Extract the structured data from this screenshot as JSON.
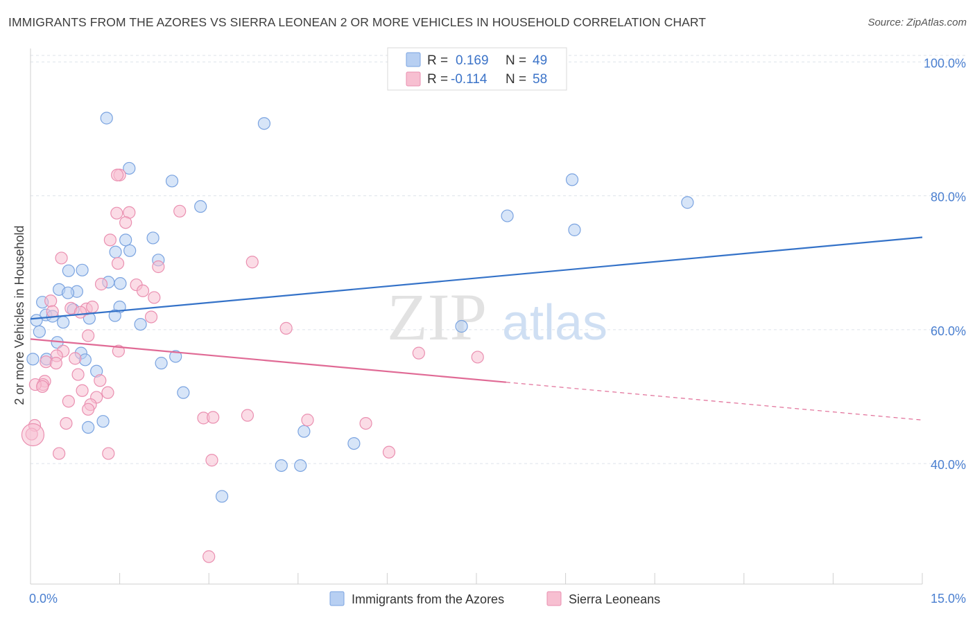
{
  "header": {
    "title": "IMMIGRANTS FROM THE AZORES VS SIERRA LEONEAN 2 OR MORE VEHICLES IN HOUSEHOLD CORRELATION CHART",
    "source": "Source: ZipAtlas.com"
  },
  "watermark": {
    "zip": "ZIP",
    "atlas": "atlas"
  },
  "legend": {
    "r_label": "R =",
    "n_label": "N =",
    "rows": [
      {
        "r": "0.169",
        "n": "49"
      },
      {
        "r": "-0.114",
        "n": "58"
      }
    ]
  },
  "colors": {
    "blue_fill": "#b7cff2",
    "blue_stroke": "#7aa3e0",
    "blue_line": "#3472c8",
    "pink_fill": "#f7bfd1",
    "pink_stroke": "#ea8fb0",
    "pink_line": "#e06a95",
    "axis_label": "#4a7fd0",
    "grid": "#dde3ea"
  },
  "chart_data": {
    "type": "scatter",
    "title": "IMMIGRANTS FROM THE AZORES VS SIERRA LEONEAN 2 OR MORE VEHICLES IN HOUSEHOLD CORRELATION CHART",
    "xlabel": "",
    "ylabel": "2 or more Vehicles in Household",
    "xlim": [
      0,
      15
    ],
    "ylim": [
      22,
      102
    ],
    "x_tick_labels": [
      "0.0%",
      "15.0%"
    ],
    "y_ticks": [
      40,
      60,
      80,
      100
    ],
    "y_tick_labels": [
      "40.0%",
      "60.0%",
      "80.0%",
      "100.0%"
    ],
    "grid": "horizontal-dashed",
    "legend_position": "bottom",
    "series": [
      {
        "name": "Immigrants from the Azores",
        "color": "#b7cff2",
        "trend": {
          "x": [
            0.0,
            15.0
          ],
          "y": [
            61.6,
            73.8
          ],
          "dashed_from": null
        },
        "points": [
          [
            1.28,
            91.6
          ],
          [
            3.93,
            90.8
          ],
          [
            1.66,
            84.1
          ],
          [
            2.38,
            82.2
          ],
          [
            9.11,
            82.4
          ],
          [
            2.86,
            78.4
          ],
          [
            11.05,
            79.0
          ],
          [
            8.02,
            77.0
          ],
          [
            9.15,
            74.9
          ],
          [
            2.06,
            73.7
          ],
          [
            1.6,
            73.4
          ],
          [
            1.43,
            71.6
          ],
          [
            1.67,
            71.8
          ],
          [
            2.15,
            70.4
          ],
          [
            0.64,
            68.8
          ],
          [
            0.87,
            68.9
          ],
          [
            1.31,
            67.1
          ],
          [
            1.51,
            66.9
          ],
          [
            0.48,
            66.0
          ],
          [
            0.78,
            65.7
          ],
          [
            0.63,
            65.5
          ],
          [
            0.2,
            64.1
          ],
          [
            1.5,
            63.4
          ],
          [
            0.72,
            63.0
          ],
          [
            0.26,
            62.2
          ],
          [
            0.37,
            62.0
          ],
          [
            1.42,
            62.1
          ],
          [
            0.1,
            61.4
          ],
          [
            0.55,
            61.1
          ],
          [
            0.99,
            61.7
          ],
          [
            1.85,
            60.8
          ],
          [
            7.25,
            60.5
          ],
          [
            0.15,
            59.7
          ],
          [
            0.45,
            58.1
          ],
          [
            0.85,
            56.5
          ],
          [
            0.27,
            55.6
          ],
          [
            0.04,
            55.6
          ],
          [
            0.92,
            55.5
          ],
          [
            2.44,
            56.0
          ],
          [
            2.2,
            55.0
          ],
          [
            1.11,
            53.8
          ],
          [
            2.57,
            50.6
          ],
          [
            1.22,
            46.3
          ],
          [
            0.97,
            45.4
          ],
          [
            4.6,
            44.8
          ],
          [
            5.44,
            43.0
          ],
          [
            4.22,
            39.7
          ],
          [
            4.54,
            39.7
          ],
          [
            3.22,
            35.1
          ]
        ]
      },
      {
        "name": "Sierra Leoneans",
        "color": "#f7bfd1",
        "trend": {
          "x": [
            0.0,
            15.0
          ],
          "y": [
            58.6,
            46.5
          ],
          "dashed_from": 8.0
        },
        "points": [
          [
            1.5,
            83.1
          ],
          [
            1.46,
            83.1
          ],
          [
            2.51,
            77.7
          ],
          [
            1.45,
            77.4
          ],
          [
            1.66,
            77.5
          ],
          [
            1.6,
            76.0
          ],
          [
            1.34,
            73.4
          ],
          [
            0.52,
            70.7
          ],
          [
            3.73,
            70.1
          ],
          [
            1.47,
            69.9
          ],
          [
            2.15,
            69.4
          ],
          [
            1.19,
            66.8
          ],
          [
            1.78,
            66.7
          ],
          [
            1.89,
            65.8
          ],
          [
            2.08,
            64.8
          ],
          [
            0.34,
            64.3
          ],
          [
            0.94,
            63.1
          ],
          [
            1.04,
            63.4
          ],
          [
            0.68,
            63.2
          ],
          [
            0.84,
            62.6
          ],
          [
            0.37,
            62.7
          ],
          [
            2.03,
            61.9
          ],
          [
            4.3,
            60.2
          ],
          [
            0.97,
            59.1
          ],
          [
            1.48,
            56.8
          ],
          [
            0.55,
            56.8
          ],
          [
            6.53,
            56.5
          ],
          [
            0.44,
            56.1
          ],
          [
            7.52,
            55.9
          ],
          [
            0.75,
            55.7
          ],
          [
            0.26,
            55.2
          ],
          [
            0.43,
            55.0
          ],
          [
            0.8,
            53.3
          ],
          [
            0.24,
            52.3
          ],
          [
            1.17,
            52.4
          ],
          [
            0.21,
            51.8
          ],
          [
            0.08,
            51.8
          ],
          [
            0.2,
            51.5
          ],
          [
            0.87,
            50.9
          ],
          [
            1.3,
            50.6
          ],
          [
            1.11,
            49.9
          ],
          [
            0.64,
            49.3
          ],
          [
            1.01,
            48.8
          ],
          [
            0.97,
            48.1
          ],
          [
            3.65,
            47.2
          ],
          [
            2.91,
            46.8
          ],
          [
            3.07,
            46.9
          ],
          [
            4.66,
            46.5
          ],
          [
            0.6,
            46.0
          ],
          [
            5.64,
            46.0
          ],
          [
            0.07,
            45.7
          ],
          [
            0.02,
            44.4
          ],
          [
            0.48,
            41.5
          ],
          [
            1.31,
            41.5
          ],
          [
            6.03,
            41.7
          ],
          [
            3.05,
            40.5
          ],
          [
            3.0,
            26.1
          ],
          [
            0.04,
            44.3
          ]
        ]
      }
    ]
  },
  "bottom_legend": [
    "Immigrants from the Azores",
    "Sierra Leoneans"
  ]
}
